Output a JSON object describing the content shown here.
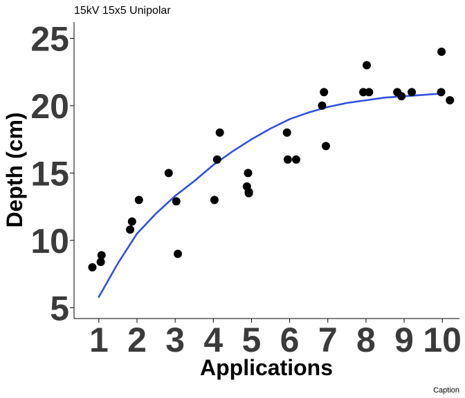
{
  "chart_data": {
    "type": "scatter",
    "title": "15kV 15x5 Unipolar",
    "xlabel": "Applications",
    "ylabel": "Depth (cm)",
    "caption": "Caption",
    "xlim": [
      0.35,
      10.45
    ],
    "ylim": [
      4.2,
      26.2
    ],
    "x_ticks": [
      1,
      2,
      3,
      4,
      5,
      6,
      7,
      8,
      9,
      10
    ],
    "y_ticks": [
      5,
      10,
      15,
      20,
      25
    ],
    "grid": false,
    "legend": "none",
    "colors": {
      "points": "#000000",
      "fit": "#3050e0",
      "axis": "#000000",
      "tick_text": "#3b3b3b"
    },
    "series": [
      {
        "kind": "points",
        "x": [
          0.83,
          1.05,
          1.07,
          1.82,
          1.87,
          2.05,
          2.83,
          3.03,
          3.07,
          4.03,
          4.1,
          4.17,
          4.88,
          4.91,
          4.93,
          4.93,
          5.93,
          5.95,
          6.17,
          6.85,
          6.9,
          6.95,
          7.93,
          8.02,
          8.08,
          8.82,
          8.93,
          9.2,
          9.97,
          9.98,
          10.2
        ],
        "y": [
          8.0,
          8.4,
          8.9,
          10.8,
          11.4,
          13.0,
          15.0,
          12.9,
          9.0,
          13.0,
          16.0,
          18.0,
          14.0,
          15.0,
          13.5,
          13.6,
          18.0,
          16.0,
          16.0,
          20.0,
          21.0,
          17.0,
          21.0,
          23.0,
          21.0,
          21.0,
          20.7,
          21.0,
          21.0,
          24.0,
          20.4
        ]
      },
      {
        "kind": "fit",
        "x": [
          1.0,
          1.5,
          2.0,
          2.5,
          3.0,
          3.5,
          4.0,
          4.5,
          5.0,
          5.5,
          6.0,
          6.5,
          7.0,
          7.5,
          8.0,
          8.5,
          9.0,
          9.5,
          10.0
        ],
        "y": [
          5.8,
          8.3,
          10.5,
          12.0,
          13.3,
          14.4,
          15.6,
          16.6,
          17.5,
          18.3,
          19.0,
          19.5,
          19.9,
          20.2,
          20.4,
          20.6,
          20.7,
          20.8,
          20.9
        ]
      }
    ]
  }
}
